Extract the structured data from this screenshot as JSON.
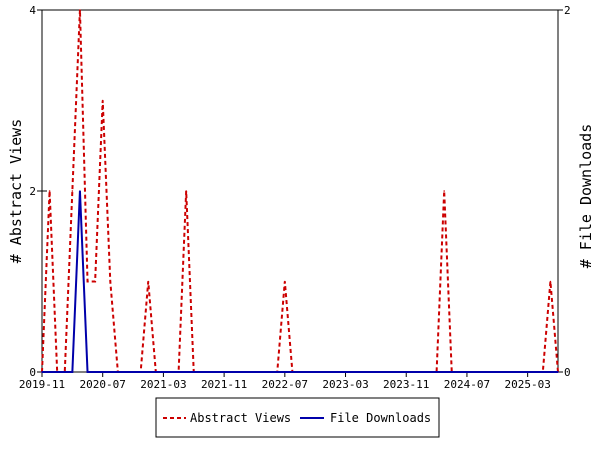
{
  "chart_data": {
    "type": "line",
    "x_tick_labels": [
      "2019-11",
      "2020-07",
      "2021-03",
      "2021-11",
      "2022-07",
      "2023-03",
      "2023-11",
      "2024-07",
      "2025-03"
    ],
    "ylabel": "# Abstract Views",
    "y2label": "# File Downloads",
    "ylim": [
      0,
      4
    ],
    "y2lim": [
      0,
      2
    ],
    "y_ticks": [
      "0",
      "2",
      "4"
    ],
    "y2_ticks": [
      "0",
      "2"
    ],
    "grid": false,
    "legend_position": "bottom-center",
    "x": [
      "2019-11",
      "2019-12",
      "2020-01",
      "2020-02",
      "2020-03",
      "2020-04",
      "2020-05",
      "2020-06",
      "2020-07",
      "2020-08",
      "2020-09",
      "2020-10",
      "2020-11",
      "2020-12",
      "2021-01",
      "2021-02",
      "2021-03",
      "2021-04",
      "2021-05",
      "2021-06",
      "2021-07",
      "2021-08",
      "2021-09",
      "2021-10",
      "2021-11",
      "2021-12",
      "2022-01",
      "2022-02",
      "2022-03",
      "2022-04",
      "2022-05",
      "2022-06",
      "2022-07",
      "2022-08",
      "2022-09",
      "2022-10",
      "2022-11",
      "2022-12",
      "2023-01",
      "2023-02",
      "2023-03",
      "2023-04",
      "2023-05",
      "2023-06",
      "2023-07",
      "2023-08",
      "2023-09",
      "2023-10",
      "2023-11",
      "2023-12",
      "2024-01",
      "2024-02",
      "2024-03",
      "2024-04",
      "2024-05",
      "2024-06",
      "2024-07",
      "2024-08",
      "2024-09",
      "2024-10",
      "2024-11",
      "2024-12",
      "2025-01",
      "2025-02",
      "2025-03",
      "2025-04",
      "2025-05",
      "2025-06",
      "2025-07"
    ],
    "series": [
      {
        "name": "Abstract Views",
        "axis": "left",
        "color": "#cc0000",
        "dash": true,
        "values": [
          0,
          2,
          0,
          0,
          2,
          4,
          1,
          1,
          3,
          1,
          0,
          0,
          0,
          0,
          1,
          0,
          0,
          0,
          0,
          2,
          0,
          0,
          0,
          0,
          0,
          0,
          0,
          0,
          0,
          0,
          0,
          0,
          1,
          0,
          0,
          0,
          0,
          0,
          0,
          0,
          0,
          0,
          0,
          0,
          0,
          0,
          0,
          0,
          0,
          0,
          0,
          0,
          0,
          2,
          0,
          0,
          0,
          0,
          0,
          0,
          0,
          0,
          0,
          0,
          0,
          0,
          0,
          1,
          0
        ]
      },
      {
        "name": "File Downloads",
        "axis": "right",
        "color": "#0000aa",
        "dash": false,
        "values": [
          0,
          0,
          0,
          0,
          0,
          1,
          0,
          0,
          0,
          0,
          0,
          0,
          0,
          0,
          0,
          0,
          0,
          0,
          0,
          0,
          0,
          0,
          0,
          0,
          0,
          0,
          0,
          0,
          0,
          0,
          0,
          0,
          0,
          0,
          0,
          0,
          0,
          0,
          0,
          0,
          0,
          0,
          0,
          0,
          0,
          0,
          0,
          0,
          0,
          0,
          0,
          0,
          0,
          0,
          0,
          0,
          0,
          0,
          0,
          0,
          0,
          0,
          0,
          0,
          0,
          0,
          0,
          0,
          0
        ]
      }
    ]
  }
}
